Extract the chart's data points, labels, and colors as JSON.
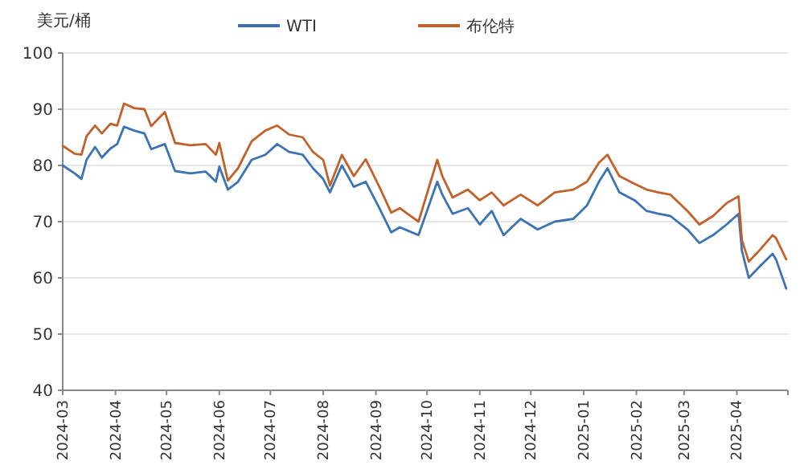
{
  "chart_data": {
    "type": "line",
    "ylabel": "美元/桶",
    "grid": "y",
    "legend": "top",
    "x": [
      "2024-03-01",
      "2024-03-08",
      "2024-03-12",
      "2024-03-15",
      "2024-03-20",
      "2024-03-24",
      "2024-03-29",
      "2024-04-02",
      "2024-04-06",
      "2024-04-12",
      "2024-04-18",
      "2024-04-22",
      "2024-04-30",
      "2024-05-06",
      "2024-05-15",
      "2024-05-24",
      "2024-05-30",
      "2024-06-01",
      "2024-06-06",
      "2024-06-12",
      "2024-06-20",
      "2024-06-28",
      "2024-07-05",
      "2024-07-12",
      "2024-07-20",
      "2024-07-26",
      "2024-08-01",
      "2024-08-05",
      "2024-08-12",
      "2024-08-19",
      "2024-08-26",
      "2024-09-03",
      "2024-09-10",
      "2024-09-15",
      "2024-09-26",
      "2024-10-07",
      "2024-10-10",
      "2024-10-16",
      "2024-10-25",
      "2024-11-01",
      "2024-11-08",
      "2024-11-15",
      "2024-11-25",
      "2024-12-05",
      "2024-12-15",
      "2024-12-26",
      "2025-01-03",
      "2025-01-10",
      "2025-01-15",
      "2025-01-22",
      "2025-01-31",
      "2025-02-07",
      "2025-02-14",
      "2025-02-21",
      "2025-03-03",
      "2025-03-10",
      "2025-03-18",
      "2025-03-26",
      "2025-04-02",
      "2025-04-04",
      "2025-04-08",
      "2025-04-14",
      "2025-04-22",
      "2025-04-24",
      "2025-04-30"
    ],
    "series": [
      {
        "name": "WTI",
        "color": "#3b73b3",
        "values": [
          80.0,
          78.6,
          77.6,
          81.0,
          83.3,
          81.4,
          83.0,
          83.8,
          86.9,
          86.2,
          85.7,
          82.9,
          83.8,
          79.0,
          78.6,
          78.9,
          77.1,
          79.8,
          75.7,
          77.1,
          81.0,
          81.9,
          83.8,
          82.4,
          81.9,
          79.5,
          77.6,
          75.2,
          80.0,
          76.2,
          77.1,
          72.4,
          68.1,
          69.0,
          67.6,
          77.1,
          74.8,
          71.4,
          72.4,
          69.5,
          71.9,
          67.6,
          70.5,
          68.6,
          70.0,
          70.5,
          72.9,
          77.1,
          79.5,
          75.2,
          73.8,
          71.9,
          71.4,
          71.0,
          68.6,
          66.2,
          67.6,
          69.5,
          71.4,
          64.8,
          60.0,
          61.9,
          64.3,
          63.3,
          58.1
        ]
      },
      {
        "name": "布伦特",
        "color": "#c0622a",
        "values": [
          83.5,
          82.1,
          81.9,
          85.2,
          87.1,
          85.7,
          87.4,
          87.1,
          91.0,
          90.2,
          90.0,
          87.0,
          89.5,
          84.0,
          83.6,
          83.8,
          81.9,
          84.0,
          77.3,
          79.5,
          84.3,
          86.2,
          87.1,
          85.5,
          85.0,
          82.4,
          81.0,
          76.4,
          81.9,
          78.1,
          81.1,
          76.2,
          71.6,
          72.4,
          70.0,
          81.0,
          78.1,
          74.3,
          75.7,
          73.8,
          75.2,
          72.9,
          74.8,
          72.9,
          75.2,
          75.7,
          77.1,
          80.5,
          81.9,
          78.1,
          76.7,
          75.7,
          75.2,
          74.8,
          71.9,
          69.5,
          71.0,
          73.3,
          74.5,
          66.7,
          62.9,
          64.8,
          67.6,
          67.1,
          63.3
        ]
      }
    ],
    "xlim": [
      "2024-03",
      "2025-05"
    ],
    "xticks": [
      {
        "value": "2024-03",
        "label": "2024-03"
      },
      {
        "value": "2024-04",
        "label": "2024-04"
      },
      {
        "value": "2024-05",
        "label": "2024-05"
      },
      {
        "value": "2024-06",
        "label": "2024-06"
      },
      {
        "value": "2024-07",
        "label": "2024-07"
      },
      {
        "value": "2024-08",
        "label": "2024-08"
      },
      {
        "value": "2024-09",
        "label": "2024-09"
      },
      {
        "value": "2024-10",
        "label": "2024-10"
      },
      {
        "value": "2024-11",
        "label": "2024-11"
      },
      {
        "value": "2024-12",
        "label": "2024-12"
      },
      {
        "value": "2025-01",
        "label": "2025-01"
      },
      {
        "value": "2025-02",
        "label": "2025-02"
      },
      {
        "value": "2025-03",
        "label": "2025-03"
      },
      {
        "value": "2025-04",
        "label": "2025-04"
      },
      {
        "value": "2025-05",
        "label": null
      }
    ],
    "ylim": [
      40,
      100
    ],
    "yticks": [
      40,
      50,
      60,
      70,
      80,
      90,
      100
    ]
  }
}
